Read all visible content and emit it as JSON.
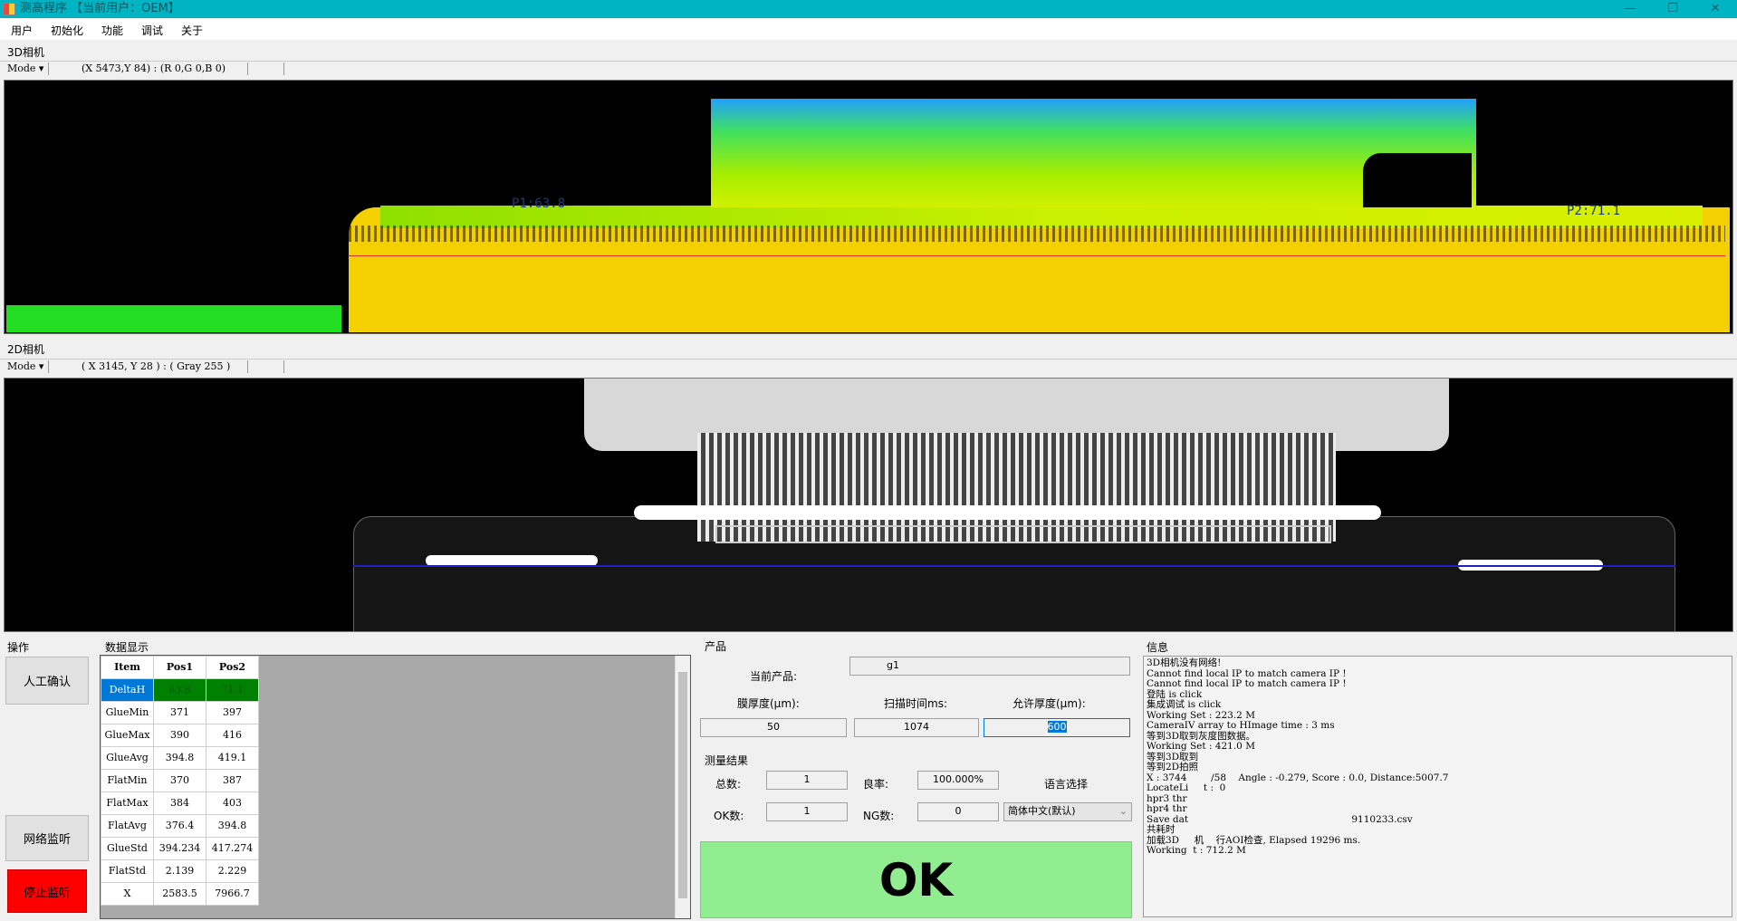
{
  "window": {
    "title": "测高程序 【当前用户：OEM】",
    "minimize": "—",
    "maximize": "❐",
    "close": "✕"
  },
  "menu": [
    "用户",
    "初始化",
    "功能",
    "调试",
    "关于"
  ],
  "camera3d": {
    "label": "3D相机",
    "mode": "Mode ▾",
    "coord": "(X 5473,Y 84) : (R 0,G 0,B 0)",
    "p1": "P1:63.8",
    "p2": "P2:71.1"
  },
  "camera2d": {
    "label": "2D相机",
    "mode": "Mode ▾",
    "coord": "( X 3145, Y 28 ) : ( Gray 255 )"
  },
  "ops": {
    "title": "操作",
    "manual_confirm": "人工确认",
    "net_listen": "网络监听",
    "stop_listen": "停止监听",
    "stop_color": "#ff0000"
  },
  "data_display": {
    "title": "数据显示",
    "headers": [
      "Item",
      "Pos1",
      "Pos2"
    ],
    "rows": [
      [
        "DeltaH",
        "63.8",
        "71.1"
      ],
      [
        "GlueMin",
        "371",
        "397"
      ],
      [
        "GlueMax",
        "390",
        "416"
      ],
      [
        "GlueAvg",
        "394.8",
        "419.1"
      ],
      [
        "FlatMin",
        "370",
        "387"
      ],
      [
        "FlatMax",
        "384",
        "403"
      ],
      [
        "FlatAvg",
        "376.4",
        "394.8"
      ],
      [
        "GlueStd",
        "394.234",
        "417.274"
      ],
      [
        "FlatStd",
        "2.139",
        "2.229"
      ],
      [
        "X",
        "2583.5",
        "7966.7"
      ]
    ],
    "highlight_color": "#008000"
  },
  "product": {
    "title": "产品",
    "current_label": "当前产品:",
    "current_value": "g1",
    "film_label": "膜厚度(μm):",
    "film_value": "50",
    "scan_label": "扫描时间ms:",
    "scan_value": "1074",
    "allow_label": "允许厚度(μm):",
    "allow_value": "600"
  },
  "results": {
    "title": "测量结果",
    "total_label": "总数:",
    "total_value": "1",
    "yield_label": "良率:",
    "yield_value": "100.000%",
    "ok_label": "OK数:",
    "ok_value": "1",
    "ng_label": "NG数:",
    "ng_value": "0",
    "lang_label": "语言选择",
    "lang_value": "简体中文(默认)",
    "status": "OK",
    "status_color": "#90ee90"
  },
  "info": {
    "title": "信息",
    "log": [
      "3D相机没有网络!",
      "Cannot find local IP to match camera IP !",
      "Cannot find local IP to match camera IP !",
      "登陆 is click",
      "集成调试 is click",
      "Working Set : 223.2 M",
      "CameraIV array to HImage time : 3 ms",
      "等到3D取到灰度图数据。",
      "Working Set : 421.0 M",
      "等到3D取到",
      "等到2D拍照",
      "X : 3744        /58    Angle : -0.279, Score : 0.0, Distance:5007.7",
      "LocateLi     t :  0",
      "hpr3 thr",
      "hpr4 thr",
      "Save dat                                                      9110233.csv",
      "共耗时",
      "加载3D     机    行AOI检查, Elapsed 19296 ms.",
      "Working  t : 712.2 M"
    ]
  }
}
